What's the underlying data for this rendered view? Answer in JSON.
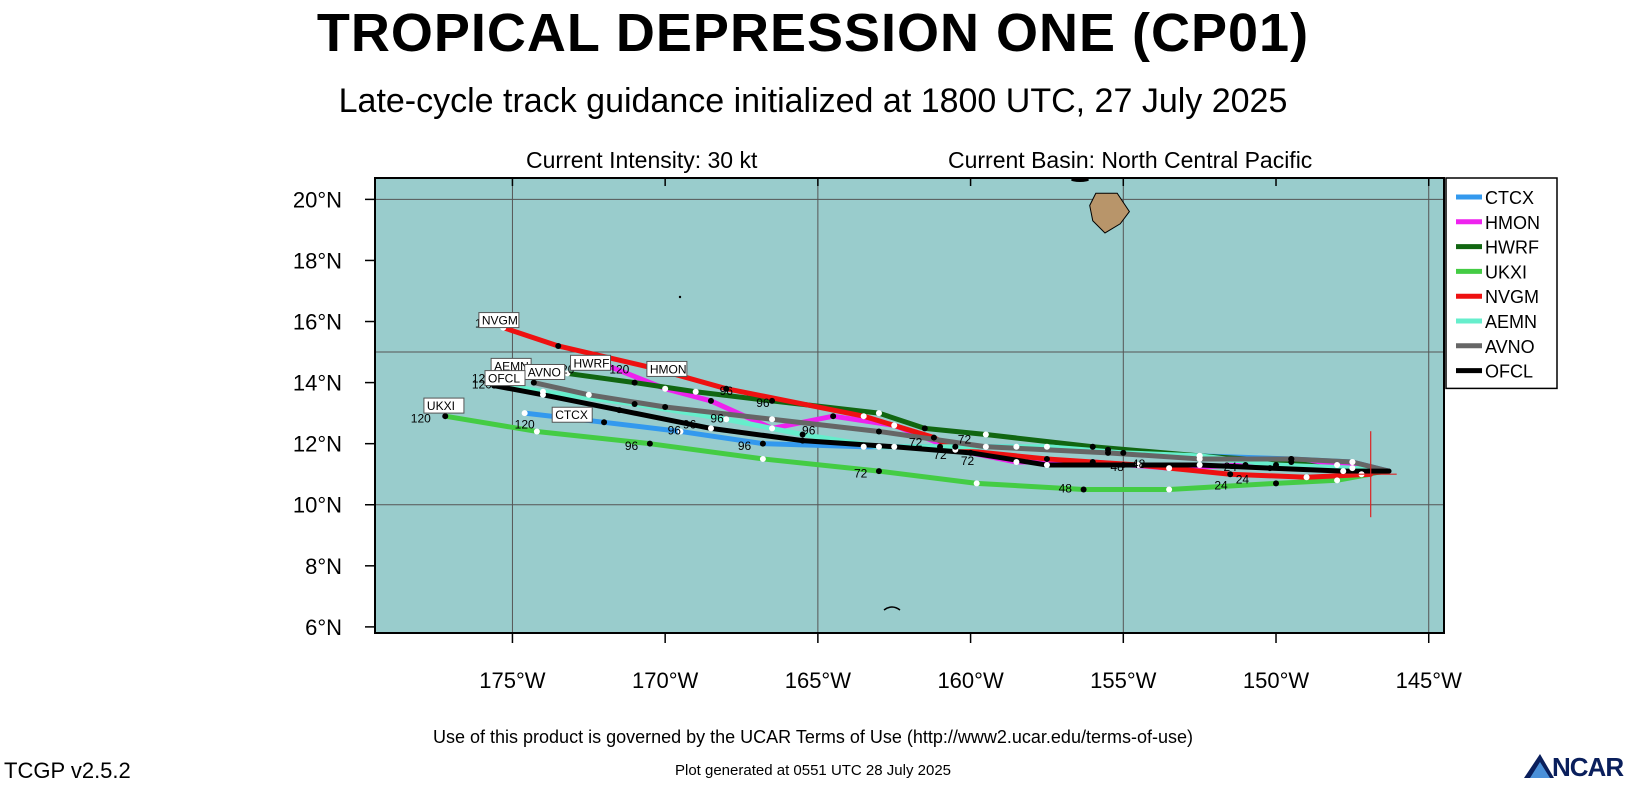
{
  "header": {
    "title": "TROPICAL DEPRESSION ONE (CP01)",
    "subtitle": "Late-cycle track guidance initialized at 1800 UTC, 27 July 2025",
    "intensity": "Current Intensity: 30 kt",
    "basin": "Current Basin: North Central Pacific"
  },
  "footer": {
    "terms": "Use of this product is governed by the UCAR Terms of Use (http://www2.ucar.edu/terms-of-use)",
    "version": "TCGP v2.5.2",
    "plot_generated": "Plot generated at 0551 UTC   28 July 2025",
    "logo": "NCAR"
  },
  "colors": {
    "ocean": "#99cccc",
    "land": "#b8956a",
    "grid": "#555555",
    "storm_marker": "#dd2222"
  },
  "chart_data": {
    "type": "line",
    "map": "track-guidance",
    "x_axis": {
      "range": [
        -179.5,
        -144.5
      ],
      "ticks": [
        -175,
        -170,
        -165,
        -160,
        -155,
        -150,
        -145
      ],
      "tick_labels": [
        "175°W",
        "170°W",
        "165°W",
        "160°W",
        "155°W",
        "150°W",
        "145°W"
      ]
    },
    "y_axis": {
      "range": [
        5.8,
        20.7
      ],
      "ticks": [
        6,
        8,
        10,
        12,
        14,
        16,
        18,
        20
      ],
      "tick_labels": [
        "6°N",
        "8°N",
        "10°N",
        "12°N",
        "14°N",
        "16°N",
        "18°N",
        "20°N"
      ]
    },
    "grid": true,
    "grid_lines_lon": [
      -175,
      -165,
      -155,
      -145
    ],
    "grid_lines_lat": [
      10,
      15,
      20
    ],
    "legend_position": "right",
    "current_position": {
      "lon": -146.9,
      "lat": 11.0
    },
    "series": [
      {
        "name": "CTCX",
        "color": "#3399ee",
        "label_lon": -173.6,
        "label_lat": 12.8,
        "points": [
          [
            -146.3,
            11.1
          ],
          [
            -147.5,
            11.4
          ],
          [
            -149.5,
            11.5
          ],
          [
            -152.5,
            11.6
          ],
          [
            -155.5,
            11.8
          ],
          [
            -158.5,
            11.9
          ],
          [
            -161.0,
            11.9
          ],
          [
            -163.5,
            11.9
          ],
          [
            -166.8,
            12.0
          ],
          [
            -169.5,
            12.4
          ],
          [
            -172.0,
            12.7
          ],
          [
            -174.6,
            13.0
          ]
        ]
      },
      {
        "name": "HMON",
        "color": "#ee22ee",
        "label_lon": -170.5,
        "label_lat": 14.3,
        "points": [
          [
            -146.3,
            11.1
          ],
          [
            -148.0,
            11.3
          ],
          [
            -151.0,
            11.3
          ],
          [
            -153.5,
            11.2
          ],
          [
            -156.0,
            11.4
          ],
          [
            -158.5,
            11.4
          ],
          [
            -160.5,
            11.8
          ],
          [
            -162.5,
            12.6
          ],
          [
            -164.5,
            12.9
          ],
          [
            -166.5,
            12.5
          ],
          [
            -168.5,
            13.4
          ],
          [
            -170.0,
            13.8
          ],
          [
            -172.0,
            14.6
          ]
        ]
      },
      {
        "name": "HWRF",
        "color": "#116611",
        "label_lon": -173.0,
        "label_lat": 14.5,
        "points": [
          [
            -146.3,
            11.1
          ],
          [
            -147.2,
            11.0
          ],
          [
            -149.5,
            11.4
          ],
          [
            -152.5,
            11.6
          ],
          [
            -156.0,
            11.9
          ],
          [
            -159.5,
            12.3
          ],
          [
            -161.5,
            12.5
          ],
          [
            -163.0,
            13.0
          ],
          [
            -166.5,
            13.4
          ],
          [
            -169.0,
            13.7
          ],
          [
            -171.0,
            14.0
          ],
          [
            -173.2,
            14.3
          ]
        ]
      },
      {
        "name": "UKXI",
        "color": "#44cc44",
        "label_lon": -177.8,
        "label_lat": 13.1,
        "points": [
          [
            -146.9,
            11.0
          ],
          [
            -148.0,
            10.8
          ],
          [
            -150.0,
            10.7
          ],
          [
            -153.5,
            10.5
          ],
          [
            -156.3,
            10.5
          ],
          [
            -159.8,
            10.7
          ],
          [
            -163.0,
            11.1
          ],
          [
            -166.8,
            11.5
          ],
          [
            -170.5,
            12.0
          ],
          [
            -174.2,
            12.4
          ],
          [
            -177.2,
            12.9
          ]
        ]
      },
      {
        "name": "NVGM",
        "color": "#ee1111",
        "label_lon": -176.0,
        "label_lat": 15.9,
        "points": [
          [
            -146.9,
            11.0
          ],
          [
            -149.0,
            10.9
          ],
          [
            -151.5,
            11.0
          ],
          [
            -154.5,
            11.3
          ],
          [
            -157.5,
            11.5
          ],
          [
            -160.5,
            11.8
          ],
          [
            -161.2,
            12.2
          ],
          [
            -163.5,
            12.9
          ],
          [
            -168.0,
            13.8
          ],
          [
            -170.5,
            14.5
          ],
          [
            -173.5,
            15.2
          ],
          [
            -175.3,
            15.8
          ]
        ]
      },
      {
        "name": "AEMN",
        "color": "#66eecc",
        "label_lon": -175.6,
        "label_lat": 14.4,
        "points": [
          [
            -146.3,
            11.1
          ],
          [
            -147.5,
            11.2
          ],
          [
            -150.0,
            11.3
          ],
          [
            -152.5,
            11.6
          ],
          [
            -155.0,
            11.7
          ],
          [
            -157.5,
            11.9
          ],
          [
            -160.5,
            11.9
          ],
          [
            -163.0,
            11.9
          ],
          [
            -165.5,
            12.3
          ],
          [
            -168.0,
            12.8
          ],
          [
            -171.0,
            13.3
          ],
          [
            -174.0,
            13.7
          ],
          [
            -175.6,
            14.0
          ]
        ]
      },
      {
        "name": "AVNO",
        "color": "#666666",
        "label_lon": -174.5,
        "label_lat": 14.2,
        "points": [
          [
            -146.3,
            11.1
          ],
          [
            -147.5,
            11.4
          ],
          [
            -149.5,
            11.5
          ],
          [
            -152.5,
            11.5
          ],
          [
            -155.5,
            11.7
          ],
          [
            -159.5,
            11.9
          ],
          [
            -163.0,
            12.4
          ],
          [
            -166.5,
            12.8
          ],
          [
            -170.0,
            13.2
          ],
          [
            -172.5,
            13.6
          ],
          [
            -174.3,
            14.0
          ]
        ]
      },
      {
        "name": "OFCL",
        "color": "#000000",
        "label_lon": -175.8,
        "label_lat": 14.0,
        "points": [
          [
            -146.3,
            11.1
          ],
          [
            -147.8,
            11.1
          ],
          [
            -150.2,
            11.2
          ],
          [
            -152.5,
            11.3
          ],
          [
            -155.0,
            11.3
          ],
          [
            -157.5,
            11.3
          ],
          [
            -160.0,
            11.7
          ],
          [
            -162.5,
            11.9
          ],
          [
            -165.5,
            12.1
          ],
          [
            -168.5,
            12.5
          ],
          [
            -171.5,
            13.1
          ],
          [
            -174.0,
            13.6
          ],
          [
            -175.6,
            13.9
          ]
        ]
      }
    ],
    "tau_labels": [
      {
        "text": "120",
        "lon": -175.9,
        "lat": 15.8
      },
      {
        "text": "120",
        "lon": -176.0,
        "lat": 14.0
      },
      {
        "text": "120",
        "lon": -176.0,
        "lat": 13.8
      },
      {
        "text": "120",
        "lon": -175.1,
        "lat": 13.9
      },
      {
        "text": "120",
        "lon": -173.3,
        "lat": 14.3
      },
      {
        "text": "120",
        "lon": -171.5,
        "lat": 14.3
      },
      {
        "text": "120",
        "lon": -174.6,
        "lat": 12.5
      },
      {
        "text": "120",
        "lon": -178.0,
        "lat": 12.7
      },
      {
        "text": "96",
        "lon": -168.0,
        "lat": 13.6
      },
      {
        "text": "96",
        "lon": -166.8,
        "lat": 13.2
      },
      {
        "text": "96",
        "lon": -168.3,
        "lat": 12.7
      },
      {
        "text": "96",
        "lon": -169.2,
        "lat": 12.5
      },
      {
        "text": "96",
        "lon": -169.7,
        "lat": 12.3
      },
      {
        "text": "96",
        "lon": -165.3,
        "lat": 12.3
      },
      {
        "text": "96",
        "lon": -171.1,
        "lat": 11.8
      },
      {
        "text": "96",
        "lon": -167.4,
        "lat": 11.8
      },
      {
        "text": "72",
        "lon": -161.8,
        "lat": 11.9
      },
      {
        "text": "72",
        "lon": -161.0,
        "lat": 11.5
      },
      {
        "text": "72",
        "lon": -160.2,
        "lat": 12.0
      },
      {
        "text": "72",
        "lon": -160.1,
        "lat": 11.3
      },
      {
        "text": "72",
        "lon": -163.6,
        "lat": 10.9
      },
      {
        "text": "48",
        "lon": -155.2,
        "lat": 11.1
      },
      {
        "text": "48",
        "lon": -154.5,
        "lat": 11.2
      },
      {
        "text": "48",
        "lon": -156.9,
        "lat": 10.4
      },
      {
        "text": "24",
        "lon": -151.5,
        "lat": 11.1
      },
      {
        "text": "24",
        "lon": -151.1,
        "lat": 10.7
      },
      {
        "text": "24",
        "lon": -151.8,
        "lat": 10.5
      }
    ],
    "land": [
      {
        "name": "Hawaii (Big Island)",
        "points": [
          [
            -155.9,
            20.2
          ],
          [
            -155.2,
            20.2
          ],
          [
            -154.8,
            19.6
          ],
          [
            -155.1,
            19.2
          ],
          [
            -155.6,
            18.9
          ],
          [
            -156.0,
            19.3
          ],
          [
            -156.1,
            19.8
          ]
        ]
      }
    ]
  }
}
